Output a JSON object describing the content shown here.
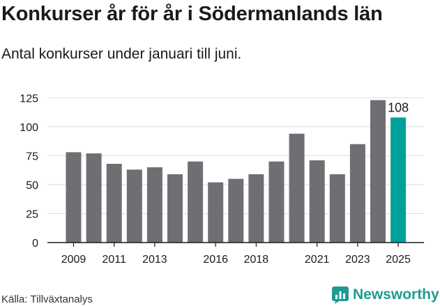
{
  "header": {
    "title": "Konkurser år för år i Södermanlands län",
    "subtitle": "Antal konkurser under januari till juni."
  },
  "footer": {
    "source": "Källa: Tillväxtanalys",
    "brand": "Newsworthy",
    "brand_icon": "newsworthy-logo-icon",
    "brand_color": "#1f9a93"
  },
  "chart_data": {
    "type": "bar",
    "title": "Konkurser år för år i Södermanlands län",
    "subtitle": "Antal konkurser under januari till juni.",
    "categories": [
      "2009",
      "2010",
      "2011",
      "2012",
      "2013",
      "2014",
      "2015",
      "2016",
      "2017",
      "2018",
      "2019",
      "2020",
      "2021",
      "2022",
      "2023",
      "2024",
      "2025"
    ],
    "values": [
      78,
      77,
      68,
      63,
      65,
      59,
      70,
      52,
      55,
      59,
      70,
      94,
      71,
      59,
      85,
      123,
      108
    ],
    "x_tick_labels": [
      "2009",
      "2011",
      "2013",
      "2016",
      "2018",
      "2021",
      "2023",
      "2025"
    ],
    "y_ticks": [
      0,
      25,
      50,
      75,
      100,
      125
    ],
    "ylim": [
      0,
      130
    ],
    "bar_color": "#6f6e73",
    "highlight_color": "#00a19a",
    "highlight_category": "2025",
    "data_labels": [
      {
        "category": "2025",
        "value": 108
      }
    ],
    "grid": true,
    "xlabel": "",
    "ylabel": ""
  }
}
